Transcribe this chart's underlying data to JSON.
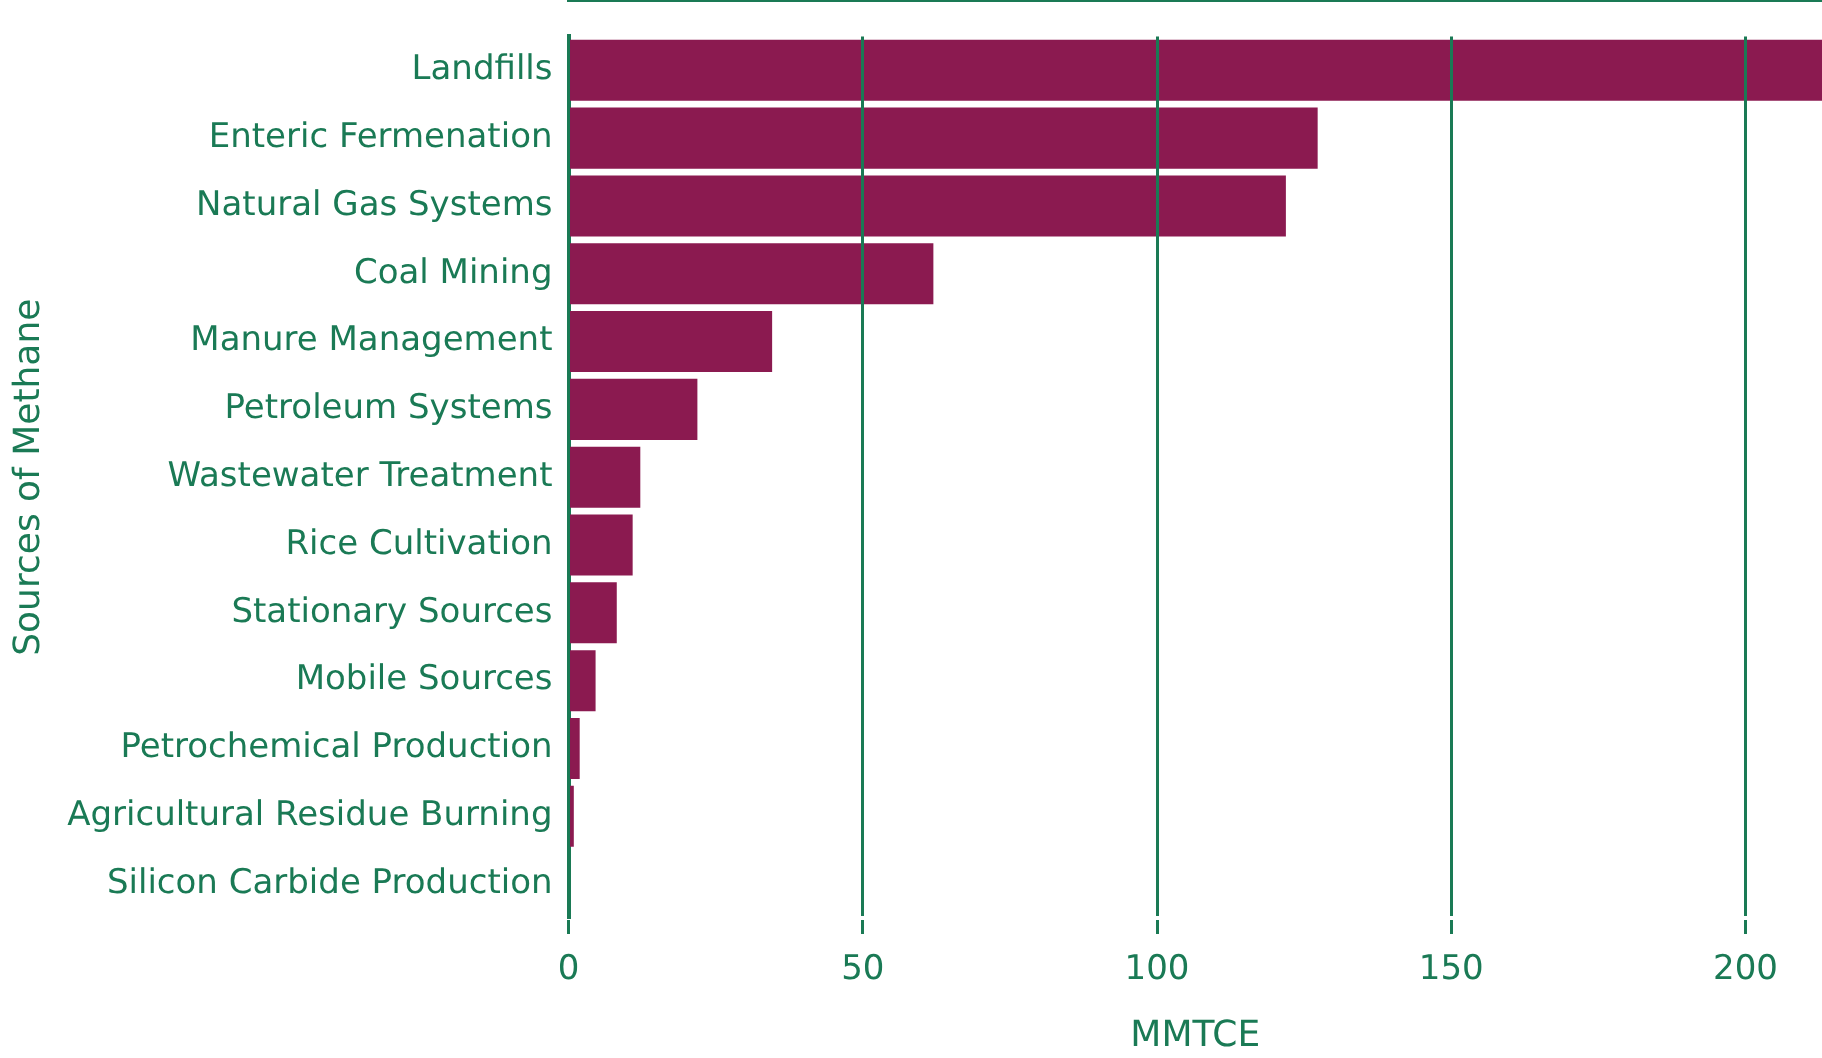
{
  "chart_data": {
    "type": "bar",
    "orientation": "horizontal",
    "xlabel": "MMTCE",
    "ylabel": "Sources of Methane",
    "categories": [
      "Landfills",
      "Enteric Fermenation",
      "Natural Gas Systems",
      "Coal Mining",
      "Manure Management",
      "Petroleum Systems",
      "Wastewater Treatment",
      "Rice Cultivation",
      "Stationary Sources",
      "Mobile Sources",
      "Petrochemical Production",
      "Agricultural Residue Burning",
      "Silicon Carbide Production"
    ],
    "values": [
      213,
      127.3,
      121.9,
      62,
      34.6,
      21.9,
      12.2,
      10.9,
      8.2,
      4.6,
      1.9,
      0.9,
      null
    ],
    "color": "#8b1a50",
    "xlim": [
      0,
      213
    ],
    "xticks": [
      0,
      50,
      100,
      150,
      200
    ],
    "grid": "x",
    "legend": false
  }
}
